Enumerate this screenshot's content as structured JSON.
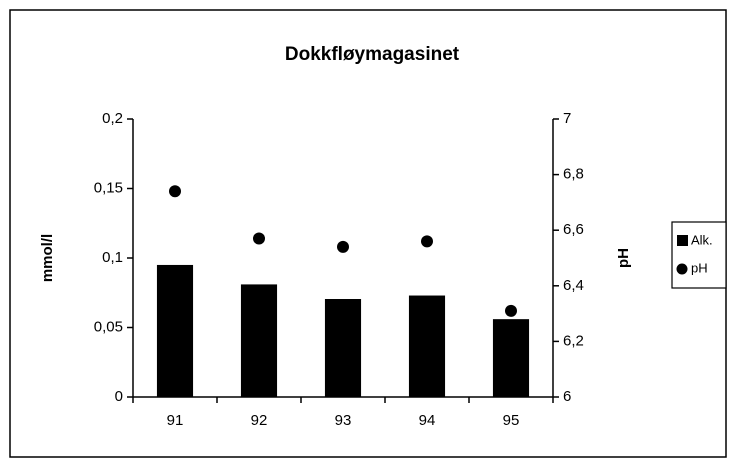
{
  "chart_data": {
    "type": "bar",
    "title": "Dokkfløymagasinet",
    "categories": [
      "91",
      "92",
      "93",
      "94",
      "95"
    ],
    "series": [
      {
        "name": "Alk.",
        "type": "bar",
        "color": "#000000",
        "values": [
          0.095,
          0.081,
          0.0705,
          0.073,
          0.056
        ]
      },
      {
        "name": "pH",
        "type": "scatter",
        "axis": "y2",
        "color": "#000000",
        "values": [
          6.74,
          6.57,
          6.54,
          6.56,
          6.31
        ]
      }
    ],
    "ylabel": "mmol/l",
    "y2label": "pH",
    "ylim": [
      0,
      0.2
    ],
    "yticks": [
      0,
      {
        "value": 0.05,
        "label": "0,05"
      },
      {
        "value": 0.1,
        "label": "0,1"
      },
      {
        "value": 0.15,
        "label": "0,15"
      },
      {
        "value": 0.2,
        "label": "0,2"
      }
    ],
    "y2lim": [
      6,
      7
    ],
    "y2ticks": [
      6,
      {
        "value": 6.2,
        "label": "6,2"
      },
      {
        "value": 6.4,
        "label": "6,4"
      },
      {
        "value": 6.6,
        "label": "6,6"
      },
      {
        "value": 6.8,
        "label": "6,8"
      },
      7
    ],
    "grid": false,
    "legend": "right"
  }
}
